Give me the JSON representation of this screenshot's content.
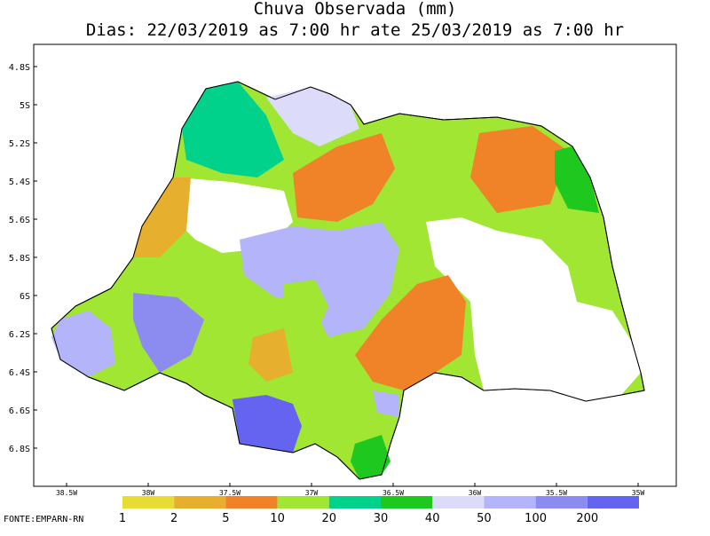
{
  "title": "Chuva Observada (mm)",
  "subtitle": "Dias: 22/03/2019 as 7:00 hr ate 25/03/2019 as 7:00 hr",
  "lat_ticks": [
    "4.8S",
    "5S",
    "5.2S",
    "5.4S",
    "5.6S",
    "5.8S",
    "6S",
    "6.2S",
    "6.4S",
    "6.6S",
    "6.8S"
  ],
  "lon_ticks": [
    "38.5W",
    "38W",
    "37.5W",
    "37W",
    "36.5W",
    "36W",
    "35.5W",
    "35W"
  ],
  "legend": {
    "labels": [
      1,
      2,
      5,
      10,
      20,
      30,
      40,
      50,
      100,
      200
    ],
    "colors": [
      "#e6dc32",
      "#e6af2d",
      "#f08228",
      "#a0e632",
      "#00d28c",
      "#1ec81e",
      "#dcdcfa",
      "#b4b4fa",
      "#8c8cf0",
      "#6464f0"
    ]
  },
  "source": "FONTE:EMPARN-RN"
}
